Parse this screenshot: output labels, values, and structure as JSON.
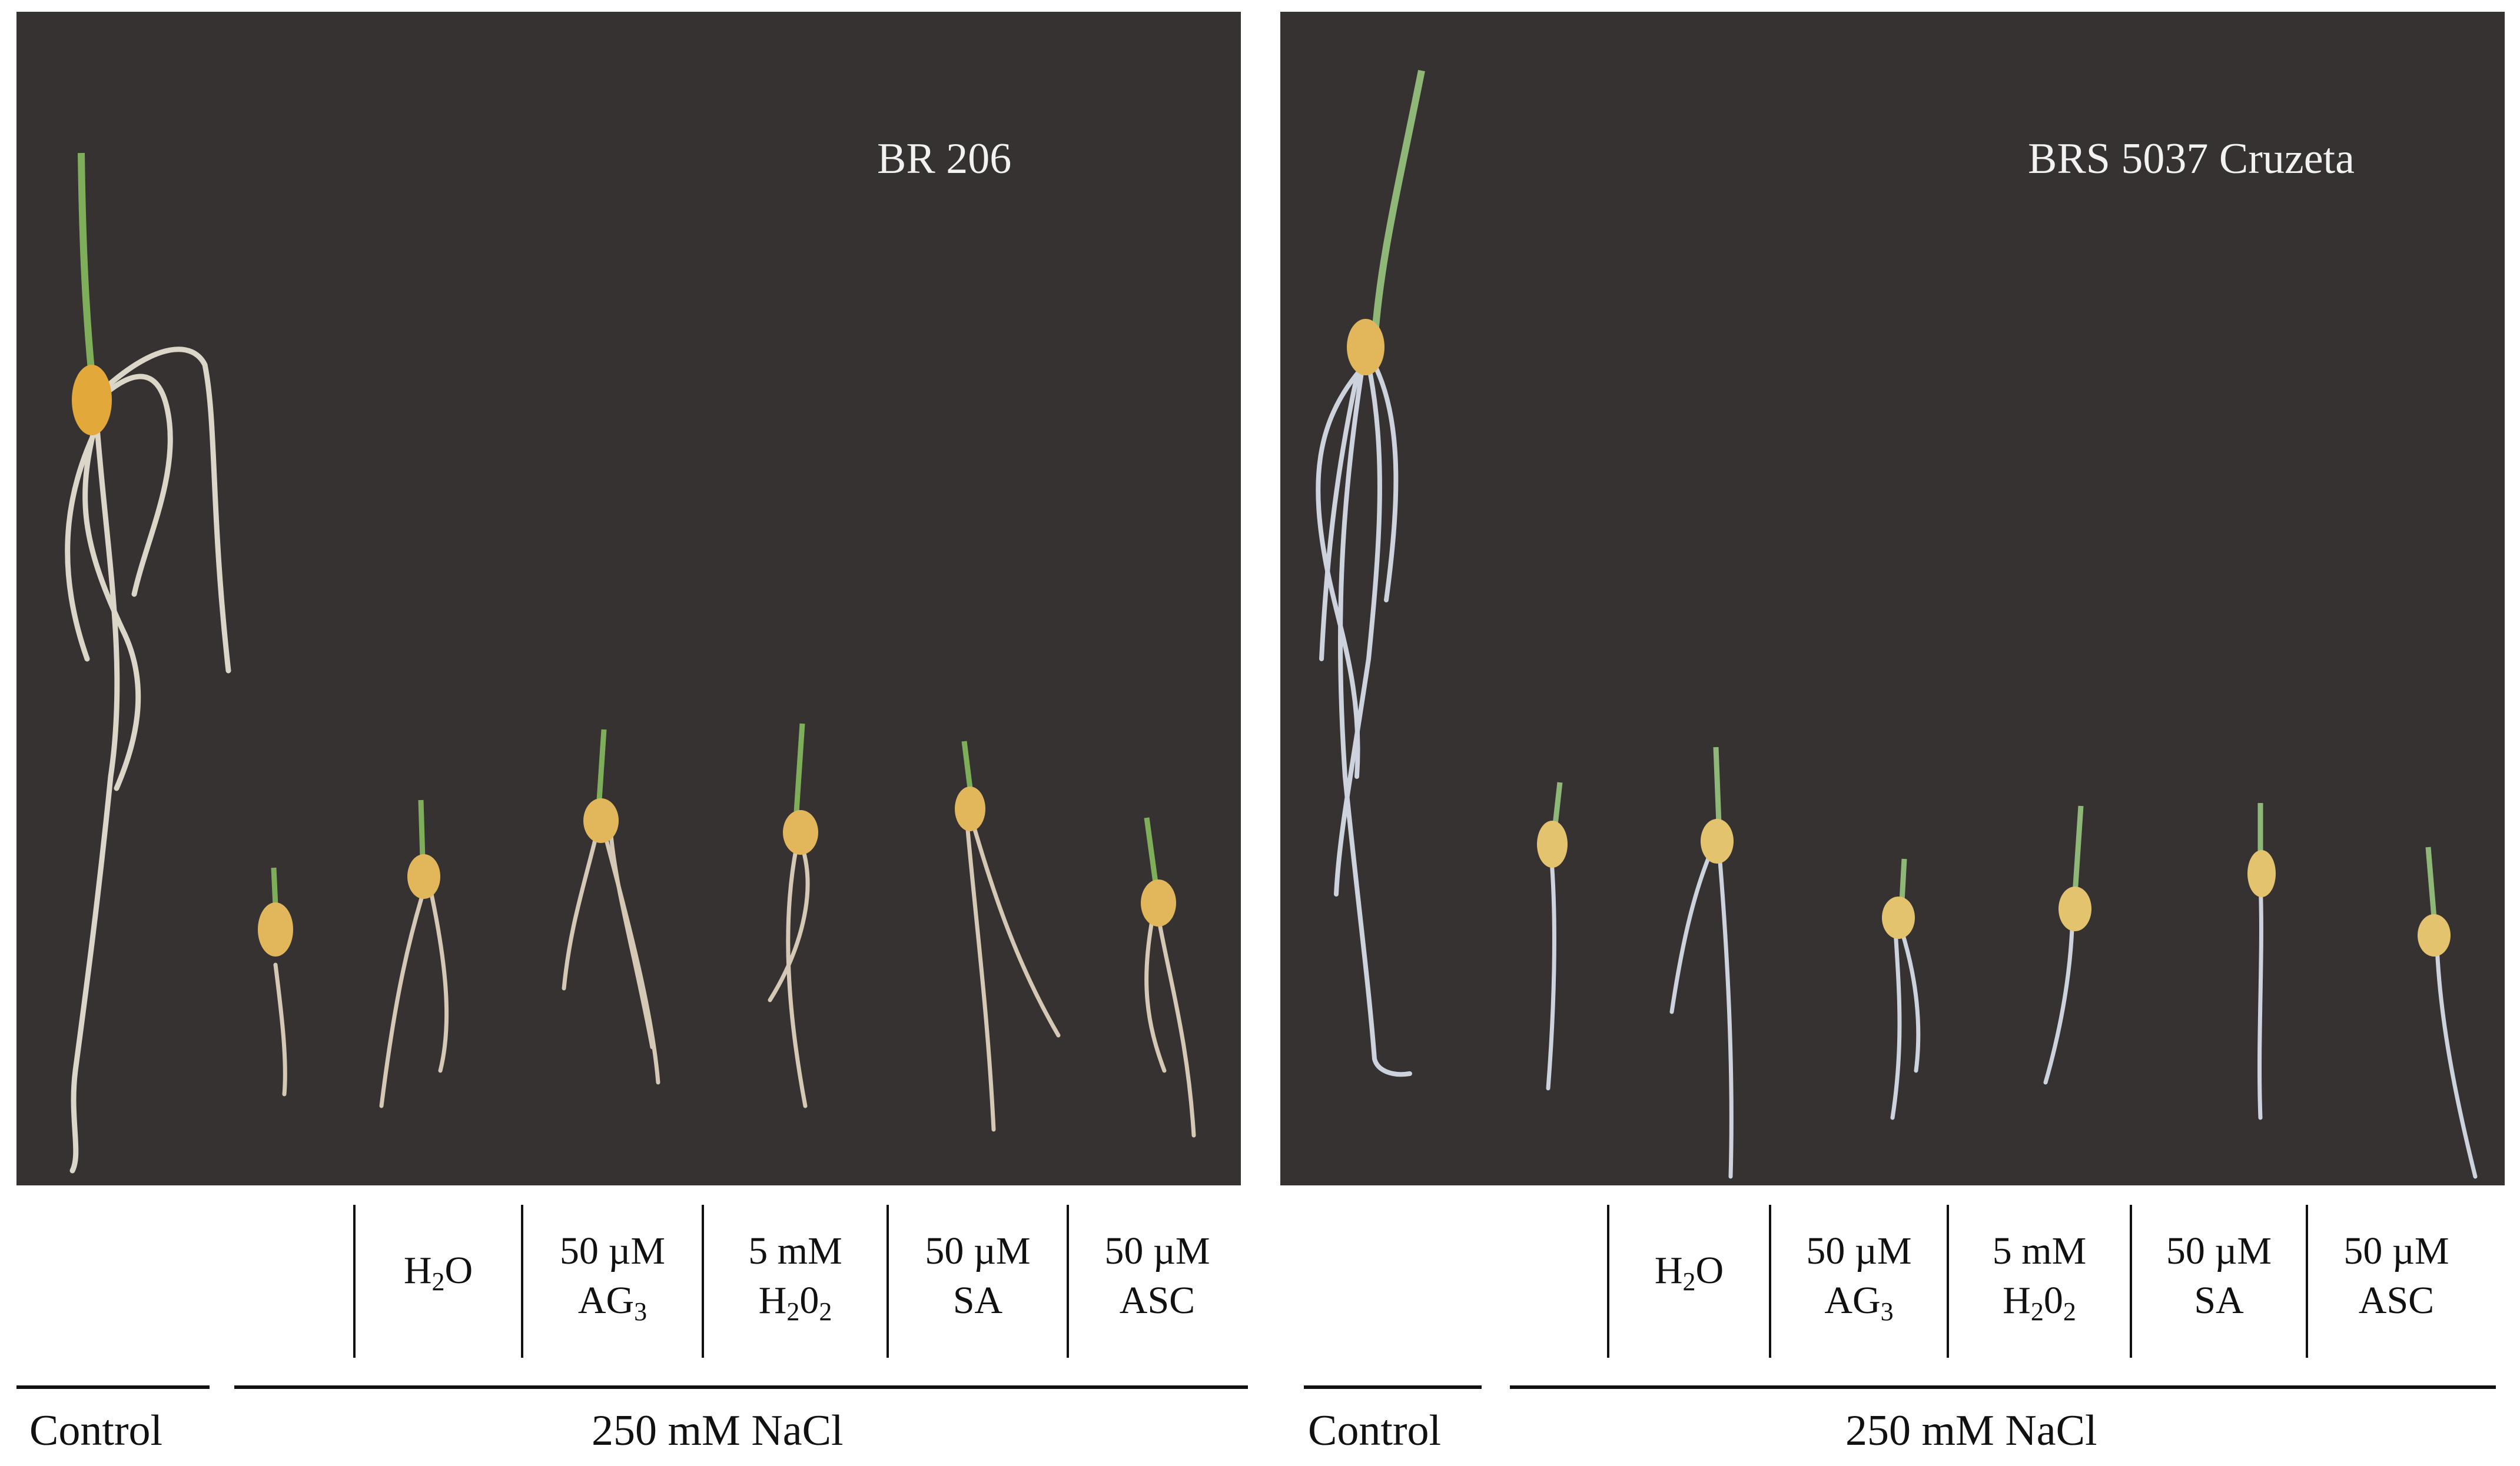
{
  "colors": {
    "background": "#353231",
    "grain": "#e2a93a",
    "shoot": "#7fae5a",
    "root": "#dcd6c8"
  },
  "panels": [
    {
      "cultivar": "BR 206",
      "treatments": [
        {
          "line1": "H",
          "sub1": "2",
          "line1b": "O",
          "line2": "",
          "sub2": ""
        },
        {
          "line1": "50 µM",
          "sub1": "",
          "line1b": "",
          "line2": "AG",
          "sub2": "3"
        },
        {
          "line1": "5 mM",
          "sub1": "",
          "line1b": "",
          "line2": "H",
          "sub2": "2",
          "line2b": "0",
          "sub3": "2"
        },
        {
          "line1": "50 µM",
          "sub1": "",
          "line1b": "",
          "line2": "SA",
          "sub2": ""
        },
        {
          "line1": "50 µM",
          "sub1": "",
          "line1b": "",
          "line2": "ASC",
          "sub2": ""
        }
      ],
      "control_label": "Control",
      "group_label": "250 mM NaCl"
    },
    {
      "cultivar": "BRS 5037 Cruzeta",
      "treatments": [
        {
          "line1": "H",
          "sub1": "2",
          "line1b": "O",
          "line2": "",
          "sub2": ""
        },
        {
          "line1": "50 µM",
          "sub1": "",
          "line1b": "",
          "line2": "AG",
          "sub2": "3"
        },
        {
          "line1": "5 mM",
          "sub1": "",
          "line1b": "",
          "line2": "H",
          "sub2": "2",
          "line2b": "0",
          "sub3": "2"
        },
        {
          "line1": "50 µM",
          "sub1": "",
          "line1b": "",
          "line2": "SA",
          "sub2": ""
        },
        {
          "line1": "50 µM",
          "sub1": "",
          "line1b": "",
          "line2": "ASC",
          "sub2": ""
        }
      ],
      "control_label": "Control",
      "group_label": "250 mM NaCl"
    }
  ]
}
